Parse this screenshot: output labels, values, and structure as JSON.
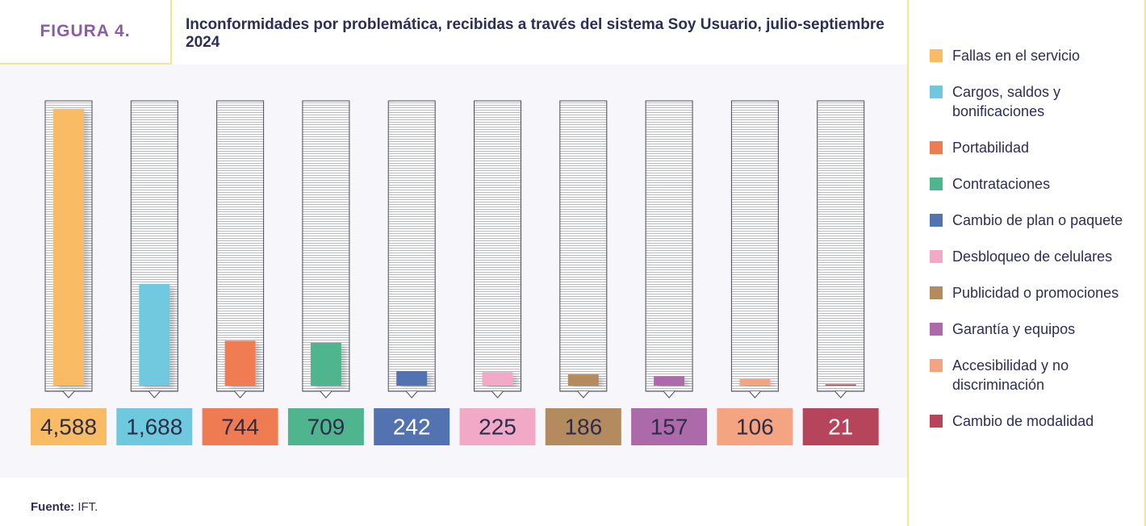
{
  "chart_data": {
    "type": "bar",
    "figure_label": "FIGURA 4.",
    "title": "Inconformidades por problemática, recibidas a través del sistema Soy Usuario, julio-septiembre 2024",
    "categories": [
      "Fallas en el servicio",
      "Cargos, saldos y bonificaciones",
      "Portabilidad",
      "Contrataciones",
      "Cambio de plan o paquete",
      "Desbloqueo de celulares",
      "Publicidad o promociones",
      "Garantía y equipos",
      "Accesibilidad y no discriminación",
      "Cambio de modalidad"
    ],
    "values": [
      4588,
      1688,
      744,
      709,
      242,
      225,
      186,
      157,
      106,
      21
    ],
    "value_labels": [
      "4,588",
      "1,688",
      "744",
      "709",
      "242",
      "225",
      "186",
      "157",
      "106",
      "21"
    ],
    "colors": [
      "#f9bb63",
      "#6fc9de",
      "#ef7b52",
      "#4fb58f",
      "#5273b0",
      "#f2a9c8",
      "#b48a5f",
      "#ad6aab",
      "#f5a482",
      "#b6445a"
    ],
    "source": {
      "label": "Fuente:",
      "text": "IFT."
    }
  }
}
